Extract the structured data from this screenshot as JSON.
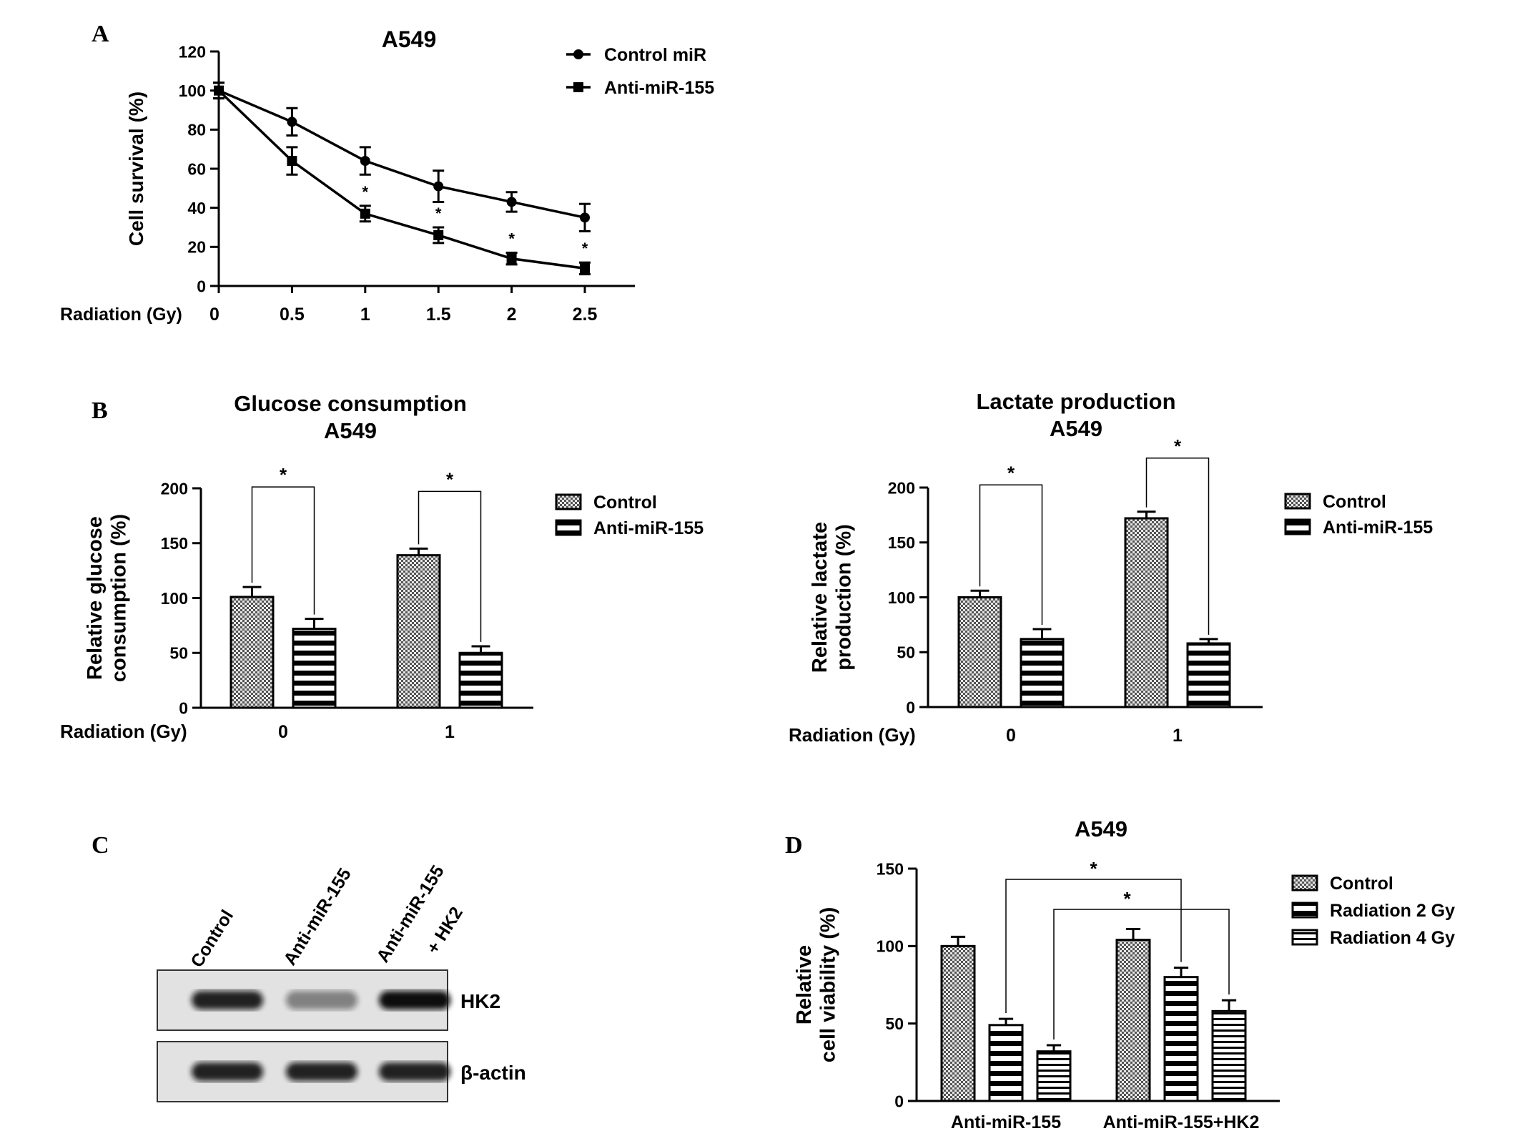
{
  "panels": {
    "A": "A",
    "B": "B",
    "C": "C",
    "D": "D"
  },
  "x_axis_prefix": "Radiation (Gy)",
  "western_blot": {
    "lanes": [
      "Control",
      "Anti-miR-155",
      "Anti-miR-155",
      "+ HK2"
    ],
    "rows": [
      "HK2",
      "β-actin"
    ],
    "hk2_band_intensity": [
      0.9,
      0.45,
      1.0
    ],
    "actin_band_intensity": [
      0.9,
      0.9,
      0.9
    ]
  },
  "chart_data": [
    {
      "panel": "A",
      "type": "line",
      "title": "A549",
      "xlabel": "Radiation (Gy)",
      "ylabel": "Cell survival (%)",
      "x": [
        0,
        0.5,
        1,
        1.5,
        2,
        2.5
      ],
      "x_tick_labels": [
        "0",
        "0.5",
        "1",
        "1.5",
        "2",
        "2.5"
      ],
      "ylim": [
        0,
        120
      ],
      "yticks": [
        0,
        20,
        40,
        60,
        80,
        100,
        120
      ],
      "legend_position": "top-right",
      "series": [
        {
          "name": "Control miR",
          "marker": "circle",
          "values": [
            100,
            84,
            64,
            51,
            43,
            35
          ],
          "errors": [
            4,
            7,
            7,
            8,
            5,
            7
          ]
        },
        {
          "name": "Anti-miR-155",
          "marker": "square",
          "values": [
            100,
            64,
            37,
            26,
            14,
            9
          ],
          "errors": [
            4,
            7,
            4,
            4,
            3,
            3
          ]
        }
      ],
      "significance_marks": [
        {
          "x": 1,
          "label": "*"
        },
        {
          "x": 1.5,
          "label": "*"
        },
        {
          "x": 2,
          "label": "*"
        },
        {
          "x": 2.5,
          "label": "*"
        }
      ]
    },
    {
      "panel": "B-left",
      "type": "bar",
      "title": "Glucose consumption",
      "subtitle": "A549",
      "xlabel": "Radiation (Gy)",
      "ylabel": "Relative glucose consumption (%)",
      "ylabel_lines": [
        "Relative glucose",
        "consumption (%)"
      ],
      "categories": [
        "0",
        "1"
      ],
      "ylim": [
        0,
        200
      ],
      "yticks": [
        0,
        50,
        100,
        150,
        200
      ],
      "legend_position": "top-right",
      "series": [
        {
          "name": "Control",
          "pattern": "checker",
          "values": [
            101,
            139
          ],
          "errors": [
            9,
            6
          ]
        },
        {
          "name": "Anti-miR-155",
          "pattern": "hstripe",
          "values": [
            72,
            50
          ],
          "errors": [
            9,
            6
          ]
        }
      ],
      "significance": [
        {
          "category": "0",
          "label": "*"
        },
        {
          "category": "1",
          "label": "*"
        }
      ]
    },
    {
      "panel": "B-right",
      "type": "bar",
      "title": "Lactate production",
      "subtitle": "A549",
      "xlabel": "Radiation (Gy)",
      "ylabel": "Relative lactate production (%)",
      "ylabel_lines": [
        "Relative lactate",
        "production (%)"
      ],
      "categories": [
        "0",
        "1"
      ],
      "ylim": [
        0,
        200
      ],
      "yticks": [
        0,
        50,
        100,
        150,
        200
      ],
      "legend_position": "top-right",
      "series": [
        {
          "name": "Control",
          "pattern": "checker",
          "values": [
            100,
            172
          ],
          "errors": [
            6,
            6
          ]
        },
        {
          "name": "Anti-miR-155",
          "pattern": "hstripe",
          "values": [
            62,
            58
          ],
          "errors": [
            9,
            4
          ]
        }
      ],
      "significance": [
        {
          "category": "0",
          "label": "*"
        },
        {
          "category": "1",
          "label": "*"
        }
      ]
    },
    {
      "panel": "D",
      "type": "bar",
      "title": "A549",
      "xlabel": "",
      "ylabel": "Relative cell viability (%)",
      "ylabel_lines": [
        "Relative",
        "cell viability (%)"
      ],
      "categories": [
        "Anti-miR-155",
        "Anti-miR-155+HK2"
      ],
      "ylim": [
        0,
        150
      ],
      "yticks": [
        0,
        50,
        100,
        150
      ],
      "legend_position": "top-right",
      "series": [
        {
          "name": "Control",
          "pattern": "checker",
          "values": [
            100,
            104
          ],
          "errors": [
            6,
            7
          ]
        },
        {
          "name": "Radiation 2 Gy",
          "pattern": "hstripe",
          "values": [
            49,
            80
          ],
          "errors": [
            4,
            6
          ]
        },
        {
          "name": "Radiation 4 Gy",
          "pattern": "hstripe-fine",
          "values": [
            32,
            58
          ],
          "errors": [
            4,
            7
          ]
        }
      ],
      "significance": [
        {
          "from": "Anti-miR-155 / Radiation 2 Gy",
          "to": "Anti-miR-155+HK2 / Radiation 2 Gy",
          "label": "*"
        },
        {
          "from": "Anti-miR-155 / Radiation 4 Gy",
          "to": "Anti-miR-155+HK2 / Radiation 4 Gy",
          "label": "*"
        }
      ]
    }
  ]
}
